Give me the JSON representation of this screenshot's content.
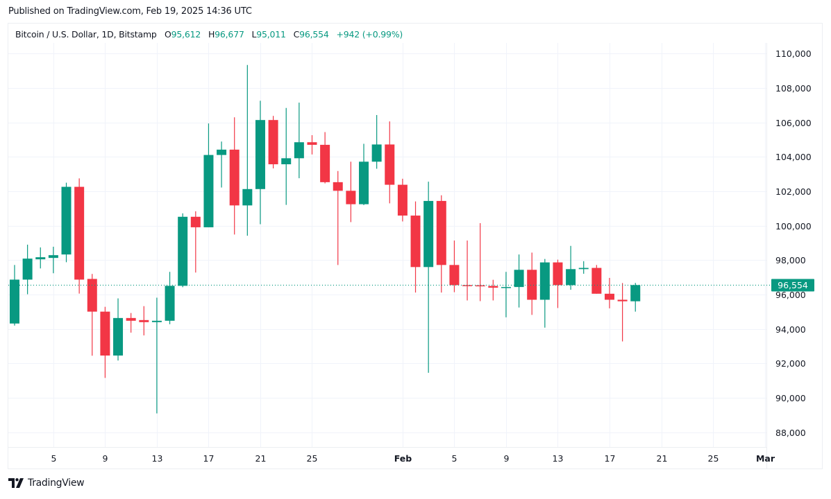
{
  "header": {
    "published": "Published on TradingView.com, Feb 19, 2025 14:36 UTC"
  },
  "legend": {
    "symbol": "Bitcoin / U.S. Dollar, 1D, Bitstamp",
    "o_label": "O",
    "o": "95,612",
    "h_label": "H",
    "h": "96,677",
    "l_label": "L",
    "l": "95,011",
    "c_label": "C",
    "c": "96,554",
    "change": "+942 (+0.99%)"
  },
  "footer": {
    "logo_text": "TradingView"
  },
  "colors": {
    "up": "#089981",
    "down": "#F23645",
    "grid": "#f0f3fa",
    "text": "#131722"
  },
  "chart_data": {
    "type": "candlestick",
    "title": "Bitcoin / U.S. Dollar, 1D, Bitstamp",
    "ylim": [
      87000,
      111000
    ],
    "grid": true,
    "y_ticks": [
      "110,000",
      "108,000",
      "106,000",
      "104,000",
      "102,000",
      "100,000",
      "98,000",
      "96,000",
      "94,000",
      "92,000",
      "90,000",
      "88,000"
    ],
    "y_tick_values": [
      110000,
      108000,
      106000,
      104000,
      102000,
      100000,
      98000,
      96000,
      94000,
      92000,
      90000,
      88000
    ],
    "x_ticks": [
      {
        "label": "5",
        "date": "2025-01-05"
      },
      {
        "label": "9",
        "date": "2025-01-09"
      },
      {
        "label": "13",
        "date": "2025-01-13"
      },
      {
        "label": "17",
        "date": "2025-01-17"
      },
      {
        "label": "21",
        "date": "2025-01-21"
      },
      {
        "label": "25",
        "date": "2025-01-25"
      },
      {
        "label": "Feb",
        "date": "2025-02-01"
      },
      {
        "label": "5",
        "date": "2025-02-05"
      },
      {
        "label": "9",
        "date": "2025-02-09"
      },
      {
        "label": "13",
        "date": "2025-02-13"
      },
      {
        "label": "17",
        "date": "2025-02-17"
      },
      {
        "label": "21",
        "date": "2025-02-21"
      },
      {
        "label": "25",
        "date": "2025-02-25"
      },
      {
        "label": "Mar",
        "date": "2025-03-01"
      }
    ],
    "last_price": 96554,
    "last_price_label": "96,554",
    "candles": [
      {
        "date": "2025-01-02",
        "o": 94320,
        "h": 97720,
        "l": 94200,
        "c": 96870
      },
      {
        "date": "2025-01-03",
        "o": 96870,
        "h": 98900,
        "l": 96020,
        "c": 98090
      },
      {
        "date": "2025-01-04",
        "o": 98050,
        "h": 98740,
        "l": 97520,
        "c": 98170
      },
      {
        "date": "2025-01-05",
        "o": 98130,
        "h": 98780,
        "l": 97240,
        "c": 98290
      },
      {
        "date": "2025-01-06",
        "o": 98330,
        "h": 102500,
        "l": 97880,
        "c": 102260
      },
      {
        "date": "2025-01-07",
        "o": 102260,
        "h": 102750,
        "l": 96060,
        "c": 96870
      },
      {
        "date": "2025-01-08",
        "o": 96910,
        "h": 97200,
        "l": 92450,
        "c": 95010
      },
      {
        "date": "2025-01-09",
        "o": 95010,
        "h": 95290,
        "l": 91160,
        "c": 92460
      },
      {
        "date": "2025-01-10",
        "o": 92460,
        "h": 95780,
        "l": 92170,
        "c": 94640
      },
      {
        "date": "2025-01-11",
        "o": 94640,
        "h": 94930,
        "l": 93790,
        "c": 94480
      },
      {
        "date": "2025-01-12",
        "o": 94520,
        "h": 95330,
        "l": 93630,
        "c": 94400
      },
      {
        "date": "2025-01-13",
        "o": 94400,
        "h": 95820,
        "l": 89100,
        "c": 94480
      },
      {
        "date": "2025-01-14",
        "o": 94480,
        "h": 97320,
        "l": 94280,
        "c": 96510
      },
      {
        "date": "2025-01-15",
        "o": 96510,
        "h": 100720,
        "l": 96430,
        "c": 100520
      },
      {
        "date": "2025-01-16",
        "o": 100520,
        "h": 100840,
        "l": 97280,
        "c": 99910
      },
      {
        "date": "2025-01-17",
        "o": 99910,
        "h": 105940,
        "l": 99910,
        "c": 104110
      },
      {
        "date": "2025-01-18",
        "o": 104110,
        "h": 104890,
        "l": 102220,
        "c": 104420
      },
      {
        "date": "2025-01-19",
        "o": 104420,
        "h": 106300,
        "l": 99490,
        "c": 101180
      },
      {
        "date": "2025-01-20",
        "o": 101180,
        "h": 109340,
        "l": 99420,
        "c": 102130
      },
      {
        "date": "2025-01-21",
        "o": 102130,
        "h": 107260,
        "l": 100090,
        "c": 106140
      },
      {
        "date": "2025-01-22",
        "o": 106140,
        "h": 106380,
        "l": 103330,
        "c": 103570
      },
      {
        "date": "2025-01-23",
        "o": 103570,
        "h": 106840,
        "l": 101210,
        "c": 103920
      },
      {
        "date": "2025-01-24",
        "o": 103920,
        "h": 107150,
        "l": 102760,
        "c": 104850
      },
      {
        "date": "2025-01-25",
        "o": 104850,
        "h": 105260,
        "l": 104140,
        "c": 104700
      },
      {
        "date": "2025-01-26",
        "o": 104700,
        "h": 105440,
        "l": 102460,
        "c": 102530
      },
      {
        "date": "2025-01-27",
        "o": 102530,
        "h": 103180,
        "l": 97720,
        "c": 102030
      },
      {
        "date": "2025-01-28",
        "o": 102030,
        "h": 103720,
        "l": 100210,
        "c": 101250
      },
      {
        "date": "2025-01-29",
        "o": 101250,
        "h": 104760,
        "l": 101200,
        "c": 103720
      },
      {
        "date": "2025-01-30",
        "o": 103720,
        "h": 106430,
        "l": 103310,
        "c": 104720
      },
      {
        "date": "2025-01-31",
        "o": 104720,
        "h": 106060,
        "l": 101300,
        "c": 102380
      },
      {
        "date": "2025-02-01",
        "o": 102380,
        "h": 102730,
        "l": 100250,
        "c": 100590
      },
      {
        "date": "2025-02-02",
        "o": 100590,
        "h": 101410,
        "l": 96120,
        "c": 97600
      },
      {
        "date": "2025-02-03",
        "o": 97600,
        "h": 102560,
        "l": 91460,
        "c": 101440
      },
      {
        "date": "2025-02-04",
        "o": 101440,
        "h": 101770,
        "l": 96120,
        "c": 97720
      },
      {
        "date": "2025-02-05",
        "o": 97720,
        "h": 99140,
        "l": 96140,
        "c": 96550
      },
      {
        "date": "2025-02-06",
        "o": 96550,
        "h": 99140,
        "l": 95660,
        "c": 96500
      },
      {
        "date": "2025-02-07",
        "o": 96540,
        "h": 100150,
        "l": 95620,
        "c": 96500
      },
      {
        "date": "2025-02-08",
        "o": 96500,
        "h": 96860,
        "l": 95660,
        "c": 96400
      },
      {
        "date": "2025-02-09",
        "o": 96400,
        "h": 97320,
        "l": 94680,
        "c": 96440
      },
      {
        "date": "2025-02-10",
        "o": 96440,
        "h": 98330,
        "l": 95250,
        "c": 97440
      },
      {
        "date": "2025-02-11",
        "o": 97440,
        "h": 98440,
        "l": 94820,
        "c": 95700
      },
      {
        "date": "2025-02-12",
        "o": 95700,
        "h": 98070,
        "l": 94080,
        "c": 97870
      },
      {
        "date": "2025-02-13",
        "o": 97870,
        "h": 98030,
        "l": 95220,
        "c": 96550
      },
      {
        "date": "2025-02-14",
        "o": 96550,
        "h": 98830,
        "l": 96280,
        "c": 97480
      },
      {
        "date": "2025-02-15",
        "o": 97480,
        "h": 97940,
        "l": 97210,
        "c": 97550
      },
      {
        "date": "2025-02-16",
        "o": 97550,
        "h": 97720,
        "l": 96050,
        "c": 96050
      },
      {
        "date": "2025-02-17",
        "o": 96050,
        "h": 96970,
        "l": 95200,
        "c": 95700
      },
      {
        "date": "2025-02-18",
        "o": 95700,
        "h": 96670,
        "l": 93280,
        "c": 95612
      },
      {
        "date": "2025-02-19",
        "o": 95612,
        "h": 96677,
        "l": 95011,
        "c": 96554
      }
    ]
  }
}
